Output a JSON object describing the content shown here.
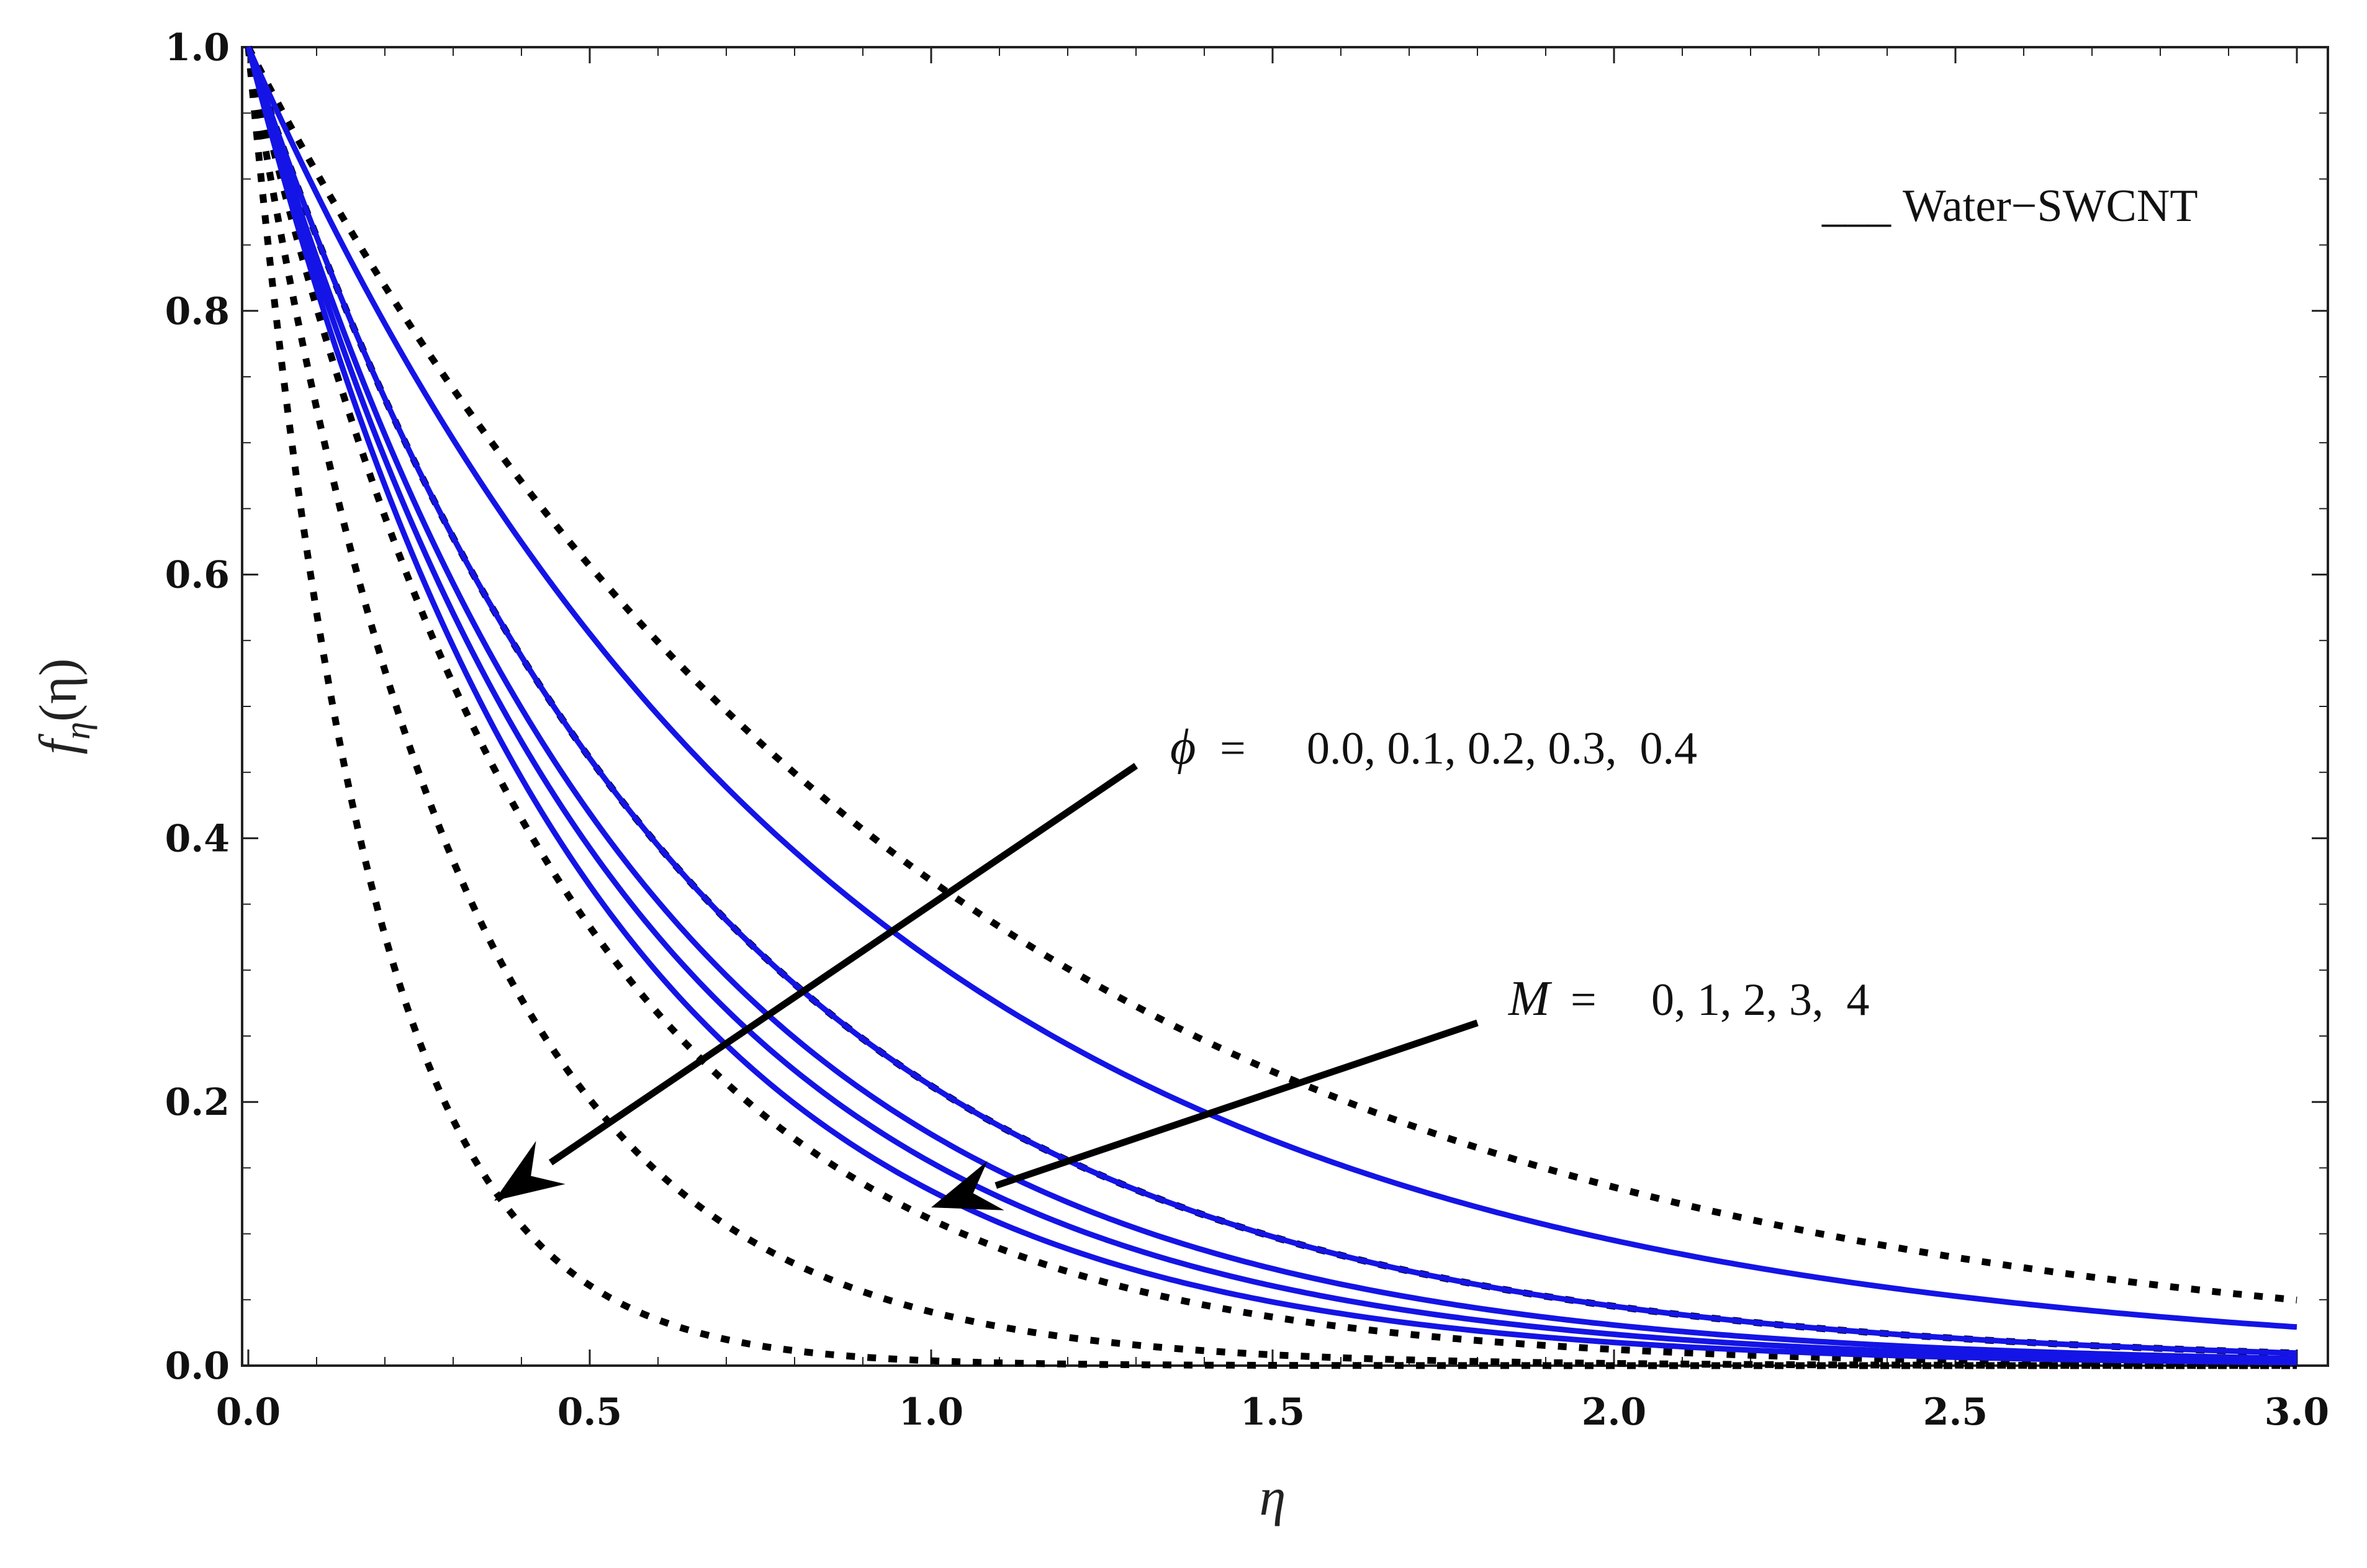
{
  "chart_data": {
    "type": "line",
    "title": "",
    "xlabel": "η",
    "ylabel": "fη(η)",
    "ylabel_main": "f",
    "ylabel_sub": "η",
    "ylabel_arg": "(η)",
    "xlim": [
      0,
      3
    ],
    "ylim": [
      0,
      1
    ],
    "xticks": [
      0.0,
      0.5,
      1.0,
      1.5,
      2.0,
      2.5,
      3.0
    ],
    "xtick_labels": [
      "0.0",
      "0.5",
      "1.0",
      "1.5",
      "2.0",
      "2.5",
      "3.0"
    ],
    "yticks": [
      0.0,
      0.2,
      0.4,
      0.6,
      0.8,
      1.0
    ],
    "ytick_labels": [
      "0.0",
      "0.2",
      "0.4",
      "0.6",
      "0.8",
      "1.0"
    ],
    "grid": false,
    "legend": {
      "position": "top-right",
      "entries": [
        {
          "name": "Water−SWCNT",
          "style": "dashed",
          "color": "#000000",
          "marker_text": "___"
        }
      ]
    },
    "curve_model": "y = exp(-k * eta)",
    "series": [
      {
        "name": "M = 0",
        "group": "M",
        "style": "solid",
        "color": "#1414e6",
        "k": 1.177
      },
      {
        "name": "M = 1",
        "group": "M",
        "style": "solid",
        "color": "#1414e6",
        "k": 1.55
      },
      {
        "name": "M = 2",
        "group": "M",
        "style": "solid",
        "color": "#1414e6",
        "k": 1.74
      },
      {
        "name": "M = 3",
        "group": "M",
        "style": "solid",
        "color": "#1414e6",
        "k": 1.87
      },
      {
        "name": "M = 4",
        "group": "M",
        "style": "solid",
        "color": "#1414e6",
        "k": 2.02
      },
      {
        "name": "φ = 0.0",
        "group": "phi",
        "style": "dashed",
        "color": "#000000",
        "k": 1.0
      },
      {
        "name": "φ = 0.1",
        "group": "phi",
        "style": "dashed",
        "color": "#000000",
        "k": 1.55
      },
      {
        "name": "φ = 0.2",
        "group": "phi",
        "style": "dashed",
        "color": "#000000",
        "k": 2.2
      },
      {
        "name": "φ = 0.3",
        "group": "phi",
        "style": "dashed",
        "color": "#000000",
        "k": 3.2
      },
      {
        "name": "φ = 0.4",
        "group": "phi",
        "style": "dashed",
        "color": "#000000",
        "k": 5.6
      }
    ],
    "annotations": [
      {
        "id": "phi",
        "symbol": "ϕ",
        "equals": "=",
        "text": "0.0, 0.1, 0.2, 0.3,  0.4",
        "arrow_from": [
          1.3,
          0.455
        ],
        "arrow_to": [
          0.36,
          0.125
        ]
      },
      {
        "id": "M",
        "symbol": "M",
        "equals": "=",
        "text": "0, 1, 2, 3,  4",
        "arrow_from": [
          1.8,
          0.26
        ],
        "arrow_to": [
          1.0,
          0.12
        ]
      }
    ]
  }
}
